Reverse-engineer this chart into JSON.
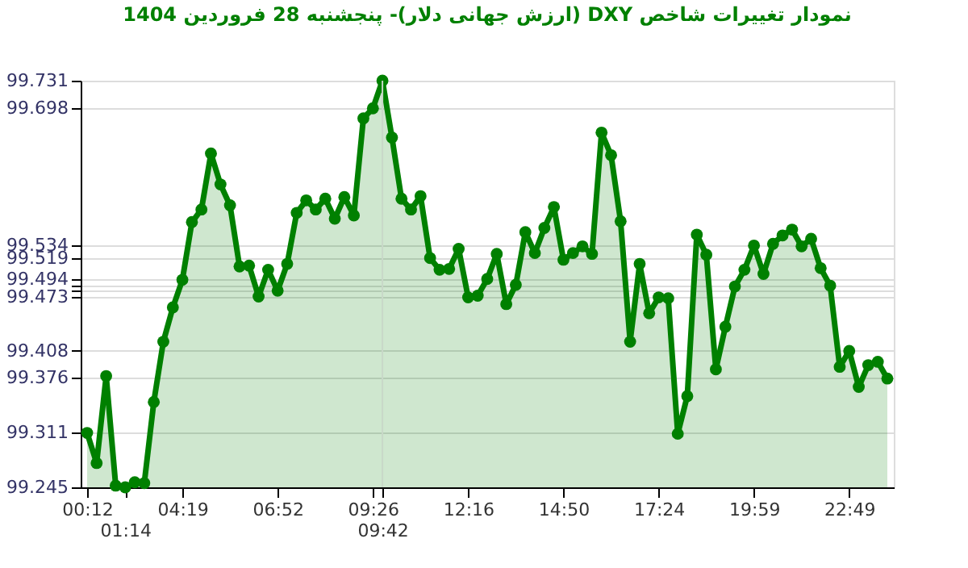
{
  "chart_data": {
    "type": "area",
    "title": "نمودار تغییرات شاخص DXY (ارزش جهانی دلار)- پنجشنبه  28 فروردین 1404",
    "categories": [
      "00:12",
      null,
      null,
      null,
      "01:14",
      null,
      null,
      null,
      null,
      null,
      "04:19",
      null,
      null,
      null,
      null,
      null,
      null,
      null,
      null,
      null,
      "06:52",
      null,
      null,
      null,
      null,
      null,
      null,
      null,
      null,
      null,
      "09:26",
      "09:42",
      null,
      null,
      null,
      null,
      null,
      null,
      null,
      null,
      "12:16",
      null,
      null,
      null,
      null,
      null,
      null,
      null,
      null,
      null,
      "14:50",
      null,
      null,
      null,
      null,
      null,
      null,
      null,
      null,
      null,
      "17:24",
      null,
      null,
      null,
      null,
      null,
      null,
      null,
      null,
      null,
      "19:59",
      null,
      null,
      null,
      null,
      null,
      null,
      null,
      null,
      null,
      "22:49",
      null,
      null,
      null,
      null
    ],
    "series": [
      {
        "color": "#008000",
        "values": [
          99.31,
          99.274,
          99.378,
          99.247,
          99.245,
          99.251,
          99.25,
          99.347,
          99.419,
          99.46,
          99.493,
          99.562,
          99.577,
          99.644,
          99.607,
          99.582,
          99.509,
          99.51,
          99.473,
          99.505,
          99.48,
          99.512,
          99.573,
          99.588,
          99.577,
          99.59,
          99.566,
          99.592,
          99.57,
          99.686,
          99.698,
          99.731,
          99.663,
          99.59,
          99.577,
          99.593,
          99.519,
          99.505,
          99.506,
          99.53,
          99.472,
          99.474,
          99.494,
          99.524,
          99.464,
          99.487,
          99.55,
          99.525,
          99.555,
          99.58,
          99.517,
          99.525,
          99.533,
          99.524,
          99.669,
          99.642,
          99.563,
          99.419,
          99.512,
          99.453,
          99.472,
          99.471,
          99.309,
          99.354,
          99.547,
          99.523,
          99.386,
          99.437,
          99.485,
          99.505,
          99.534,
          99.5,
          99.536,
          99.546,
          99.553,
          99.533,
          99.542,
          99.507,
          99.486,
          99.389,
          99.408,
          99.365,
          99.391,
          99.395,
          99.375
        ]
      }
    ],
    "ylim": [
      99.245,
      99.731
    ],
    "yticks": [
      99.245,
      99.311,
      99.376,
      99.408,
      99.473,
      {
        "value": 99.481,
        "label": null
      },
      {
        "value": 99.487,
        "label": null
      },
      99.494,
      99.519,
      99.534,
      99.698,
      99.731
    ],
    "ref_lines": [
      {
        "axis": "x",
        "value": "09:42",
        "label": null,
        "color": "#c8d8c8"
      }
    ],
    "grid": "y",
    "marker": "circle",
    "line_style": "solid"
  }
}
